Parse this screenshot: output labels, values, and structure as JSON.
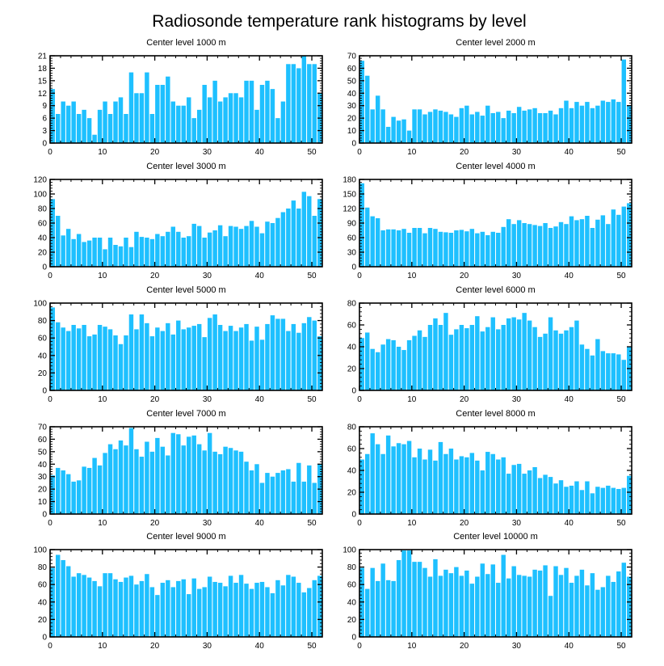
{
  "figure_title": "Radiosonde temperature rank histograms by level",
  "bar_color": "#1ec0ff",
  "chart_data": [
    {
      "type": "bar",
      "title": "Center level 1000 m",
      "xlim": [
        0,
        52
      ],
      "ylim": [
        0,
        21
      ],
      "xticks": [
        0,
        10,
        20,
        30,
        40,
        50
      ],
      "yticks": [
        0,
        3,
        6,
        9,
        12,
        15,
        18,
        21
      ],
      "x": [
        0,
        1,
        2,
        3,
        4,
        5,
        6,
        7,
        8,
        9,
        10,
        11,
        12,
        13,
        14,
        15,
        16,
        17,
        18,
        19,
        20,
        21,
        22,
        23,
        24,
        25,
        26,
        27,
        28,
        29,
        30,
        31,
        32,
        33,
        34,
        35,
        36,
        37,
        38,
        39,
        40,
        41,
        42,
        43,
        44,
        45,
        46,
        47,
        48,
        49,
        50,
        51
      ],
      "values": [
        13,
        7,
        10,
        9,
        10,
        7,
        8,
        6,
        2,
        8,
        10,
        7,
        10,
        11,
        7,
        17,
        12,
        12,
        17,
        7,
        14,
        14,
        16,
        10,
        9,
        9,
        11,
        6,
        8,
        14,
        11,
        15,
        10,
        11,
        12,
        12,
        11,
        15,
        15,
        8,
        14,
        15,
        13,
        6,
        10,
        19,
        19,
        18,
        21,
        19,
        19,
        12
      ]
    },
    {
      "type": "bar",
      "title": "Center level 2000 m",
      "xlim": [
        0,
        52
      ],
      "ylim": [
        0,
        70
      ],
      "xticks": [
        0,
        10,
        20,
        30,
        40,
        50
      ],
      "yticks": [
        0,
        10,
        20,
        30,
        40,
        50,
        60,
        70
      ],
      "x": [
        0,
        1,
        2,
        3,
        4,
        5,
        6,
        7,
        8,
        9,
        10,
        11,
        12,
        13,
        14,
        15,
        16,
        17,
        18,
        19,
        20,
        21,
        22,
        23,
        24,
        25,
        26,
        27,
        28,
        29,
        30,
        31,
        32,
        33,
        34,
        35,
        36,
        37,
        38,
        39,
        40,
        41,
        42,
        43,
        44,
        45,
        46,
        47,
        48,
        49,
        50,
        51
      ],
      "values": [
        66,
        54,
        27,
        38,
        27,
        13,
        21,
        18,
        19,
        10,
        27,
        27,
        23,
        25,
        27,
        26,
        25,
        23,
        21,
        28,
        30,
        23,
        25,
        22,
        30,
        24,
        25,
        20,
        26,
        24,
        29,
        26,
        27,
        28,
        24,
        24,
        26,
        23,
        28,
        34,
        28,
        33,
        30,
        33,
        28,
        30,
        34,
        33,
        35,
        33,
        67,
        30
      ]
    },
    {
      "type": "bar",
      "title": "Center level 3000 m",
      "xlim": [
        0,
        52
      ],
      "ylim": [
        0,
        120
      ],
      "xticks": [
        0,
        10,
        20,
        30,
        40,
        50
      ],
      "yticks": [
        0,
        20,
        40,
        60,
        80,
        100,
        120
      ],
      "x": [
        0,
        1,
        2,
        3,
        4,
        5,
        6,
        7,
        8,
        9,
        10,
        11,
        12,
        13,
        14,
        15,
        16,
        17,
        18,
        19,
        20,
        21,
        22,
        23,
        24,
        25,
        26,
        27,
        28,
        29,
        30,
        31,
        32,
        33,
        34,
        35,
        36,
        37,
        38,
        39,
        40,
        41,
        42,
        43,
        44,
        45,
        46,
        47,
        48,
        49,
        50,
        51
      ],
      "values": [
        93,
        70,
        43,
        52,
        38,
        45,
        34,
        36,
        40,
        40,
        24,
        40,
        30,
        28,
        40,
        27,
        48,
        41,
        40,
        38,
        45,
        42,
        48,
        55,
        48,
        40,
        42,
        59,
        56,
        40,
        47,
        50,
        57,
        42,
        56,
        55,
        52,
        56,
        63,
        55,
        46,
        62,
        60,
        67,
        75,
        80,
        91,
        80,
        103,
        97,
        70,
        93
      ]
    },
    {
      "type": "bar",
      "title": "Center level 4000 m",
      "xlim": [
        0,
        52
      ],
      "ylim": [
        0,
        180
      ],
      "xticks": [
        0,
        10,
        20,
        30,
        40,
        50
      ],
      "yticks": [
        0,
        30,
        60,
        90,
        120,
        150,
        180
      ],
      "x": [
        0,
        1,
        2,
        3,
        4,
        5,
        6,
        7,
        8,
        9,
        10,
        11,
        12,
        13,
        14,
        15,
        16,
        17,
        18,
        19,
        20,
        21,
        22,
        23,
        24,
        25,
        26,
        27,
        28,
        29,
        30,
        31,
        32,
        33,
        34,
        35,
        36,
        37,
        38,
        39,
        40,
        41,
        42,
        43,
        44,
        45,
        46,
        47,
        48,
        49,
        50,
        51
      ],
      "values": [
        172,
        122,
        104,
        100,
        75,
        77,
        77,
        75,
        78,
        70,
        80,
        80,
        69,
        80,
        78,
        72,
        71,
        70,
        75,
        76,
        73,
        78,
        69,
        72,
        65,
        72,
        70,
        82,
        98,
        88,
        96,
        90,
        88,
        86,
        84,
        90,
        80,
        83,
        92,
        88,
        104,
        96,
        98,
        105,
        80,
        97,
        106,
        88,
        118,
        107,
        124,
        131
      ]
    },
    {
      "type": "bar",
      "title": "Center level 5000 m",
      "xlim": [
        0,
        52
      ],
      "ylim": [
        0,
        100
      ],
      "xticks": [
        0,
        10,
        20,
        30,
        40,
        50
      ],
      "yticks": [
        0,
        20,
        40,
        60,
        80,
        100
      ],
      "x": [
        0,
        1,
        2,
        3,
        4,
        5,
        6,
        7,
        8,
        9,
        10,
        11,
        12,
        13,
        14,
        15,
        16,
        17,
        18,
        19,
        20,
        21,
        22,
        23,
        24,
        25,
        26,
        27,
        28,
        29,
        30,
        31,
        32,
        33,
        34,
        35,
        36,
        37,
        38,
        39,
        40,
        41,
        42,
        43,
        44,
        45,
        46,
        47,
        48,
        49,
        50,
        51
      ],
      "values": [
        95,
        78,
        72,
        68,
        75,
        71,
        75,
        62,
        64,
        75,
        73,
        70,
        63,
        53,
        63,
        87,
        70,
        87,
        77,
        62,
        72,
        68,
        77,
        64,
        80,
        70,
        72,
        74,
        76,
        61,
        83,
        87,
        75,
        68,
        74,
        68,
        72,
        76,
        57,
        73,
        58,
        76,
        86,
        82,
        82,
        68,
        76,
        66,
        77,
        84,
        80,
        62
      ]
    },
    {
      "type": "bar",
      "title": "Center level 6000 m",
      "xlim": [
        0,
        52
      ],
      "ylim": [
        0,
        80
      ],
      "xticks": [
        0,
        10,
        20,
        30,
        40,
        50
      ],
      "yticks": [
        0,
        20,
        40,
        60,
        80
      ],
      "x": [
        0,
        1,
        2,
        3,
        4,
        5,
        6,
        7,
        8,
        9,
        10,
        11,
        12,
        13,
        14,
        15,
        16,
        17,
        18,
        19,
        20,
        21,
        22,
        23,
        24,
        25,
        26,
        27,
        28,
        29,
        30,
        31,
        32,
        33,
        34,
        35,
        36,
        37,
        38,
        39,
        40,
        41,
        42,
        43,
        44,
        45,
        46,
        47,
        48,
        49,
        50,
        51
      ],
      "values": [
        48,
        53,
        38,
        35,
        42,
        47,
        46,
        40,
        37,
        46,
        50,
        55,
        49,
        60,
        66,
        60,
        71,
        51,
        56,
        60,
        57,
        60,
        68,
        54,
        58,
        67,
        56,
        60,
        66,
        67,
        65,
        71,
        64,
        58,
        49,
        52,
        67,
        55,
        52,
        55,
        58,
        64,
        42,
        38,
        32,
        47,
        36,
        34,
        34,
        33,
        28,
        40
      ]
    },
    {
      "type": "bar",
      "title": "Center level 7000 m",
      "xlim": [
        0,
        52
      ],
      "ylim": [
        0,
        70
      ],
      "xticks": [
        0,
        10,
        20,
        30,
        40,
        50
      ],
      "yticks": [
        0,
        10,
        20,
        30,
        40,
        50,
        60,
        70
      ],
      "x": [
        0,
        1,
        2,
        3,
        4,
        5,
        6,
        7,
        8,
        9,
        10,
        11,
        12,
        13,
        14,
        15,
        16,
        17,
        18,
        19,
        20,
        21,
        22,
        23,
        24,
        25,
        26,
        27,
        28,
        29,
        30,
        31,
        32,
        33,
        34,
        35,
        36,
        37,
        38,
        39,
        40,
        41,
        42,
        43,
        44,
        45,
        46,
        47,
        48,
        49,
        50,
        51
      ],
      "values": [
        31,
        37,
        35,
        32,
        26,
        27,
        38,
        37,
        45,
        39,
        49,
        56,
        52,
        59,
        55,
        69,
        52,
        46,
        58,
        50,
        61,
        54,
        47,
        65,
        64,
        55,
        62,
        63,
        56,
        51,
        65,
        50,
        48,
        54,
        53,
        51,
        50,
        42,
        35,
        40,
        25,
        33,
        30,
        33,
        35,
        36,
        26,
        41,
        26,
        39,
        25,
        40
      ]
    },
    {
      "type": "bar",
      "title": "Center level 8000 m",
      "xlim": [
        0,
        52
      ],
      "ylim": [
        0,
        80
      ],
      "xticks": [
        0,
        10,
        20,
        30,
        40,
        50
      ],
      "yticks": [
        0,
        20,
        40,
        60,
        80
      ],
      "x": [
        0,
        1,
        2,
        3,
        4,
        5,
        6,
        7,
        8,
        9,
        10,
        11,
        12,
        13,
        14,
        15,
        16,
        17,
        18,
        19,
        20,
        21,
        22,
        23,
        24,
        25,
        26,
        27,
        28,
        29,
        30,
        31,
        32,
        33,
        34,
        35,
        36,
        37,
        38,
        39,
        40,
        41,
        42,
        43,
        44,
        45,
        46,
        47,
        48,
        49,
        50,
        51
      ],
      "values": [
        50,
        55,
        74,
        64,
        55,
        72,
        62,
        65,
        64,
        67,
        52,
        60,
        50,
        59,
        49,
        66,
        55,
        60,
        50,
        53,
        52,
        56,
        49,
        40,
        57,
        55,
        50,
        52,
        37,
        45,
        46,
        37,
        40,
        43,
        33,
        36,
        34,
        28,
        31,
        25,
        26,
        30,
        22,
        30,
        19,
        25,
        24,
        26,
        24,
        23,
        24,
        35
      ]
    },
    {
      "type": "bar",
      "title": "Center level 9000 m",
      "xlim": [
        0,
        52
      ],
      "ylim": [
        0,
        100
      ],
      "xticks": [
        0,
        10,
        20,
        30,
        40,
        50
      ],
      "yticks": [
        0,
        20,
        40,
        60,
        80,
        100
      ],
      "x": [
        0,
        1,
        2,
        3,
        4,
        5,
        6,
        7,
        8,
        9,
        10,
        11,
        12,
        13,
        14,
        15,
        16,
        17,
        18,
        19,
        20,
        21,
        22,
        23,
        24,
        25,
        26,
        27,
        28,
        29,
        30,
        31,
        32,
        33,
        34,
        35,
        36,
        37,
        38,
        39,
        40,
        41,
        42,
        43,
        44,
        45,
        46,
        47,
        48,
        49,
        50,
        51
      ],
      "values": [
        79,
        94,
        88,
        81,
        69,
        73,
        71,
        68,
        64,
        58,
        73,
        73,
        66,
        63,
        68,
        70,
        60,
        64,
        72,
        57,
        48,
        62,
        65,
        57,
        64,
        66,
        49,
        67,
        55,
        57,
        69,
        63,
        62,
        58,
        70,
        62,
        71,
        61,
        55,
        62,
        63,
        57,
        50,
        65,
        59,
        71,
        69,
        62,
        51,
        56,
        65,
        70
      ]
    },
    {
      "type": "bar",
      "title": "Center level 10000 m",
      "xlim": [
        0,
        52
      ],
      "ylim": [
        0,
        100
      ],
      "xticks": [
        0,
        10,
        20,
        30,
        40,
        50
      ],
      "yticks": [
        0,
        20,
        40,
        60,
        80,
        100
      ],
      "x": [
        0,
        1,
        2,
        3,
        4,
        5,
        6,
        7,
        8,
        9,
        10,
        11,
        12,
        13,
        14,
        15,
        16,
        17,
        18,
        19,
        20,
        21,
        22,
        23,
        24,
        25,
        26,
        27,
        28,
        29,
        30,
        31,
        32,
        33,
        34,
        35,
        36,
        37,
        38,
        39,
        40,
        41,
        42,
        43,
        44,
        45,
        46,
        47,
        48,
        49,
        50,
        51
      ],
      "values": [
        79,
        55,
        79,
        64,
        84,
        65,
        64,
        88,
        99,
        99,
        86,
        86,
        79,
        69,
        89,
        70,
        77,
        73,
        80,
        70,
        76,
        61,
        69,
        84,
        72,
        83,
        62,
        94,
        67,
        81,
        71,
        70,
        69,
        77,
        76,
        82,
        47,
        81,
        71,
        79,
        62,
        70,
        77,
        59,
        73,
        54,
        57,
        70,
        63,
        75,
        85,
        69
      ]
    }
  ]
}
